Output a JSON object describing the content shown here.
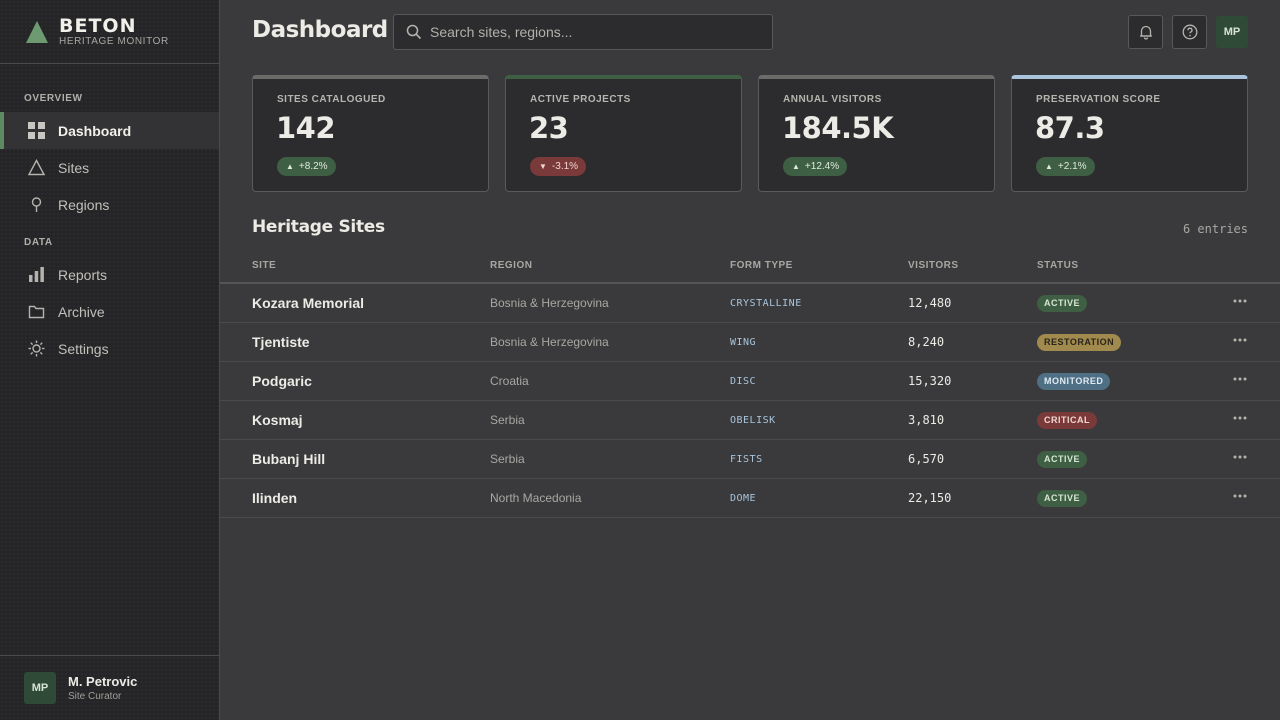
{
  "brand": {
    "name": "BETON",
    "subtitle": "HERITAGE MONITOR",
    "accent": "#5d8a63"
  },
  "nav": {
    "sections": [
      {
        "label": "OVERVIEW"
      },
      {
        "label": "DATA"
      }
    ],
    "items": [
      {
        "label": "Dashboard",
        "icon": "grid-icon",
        "active": true
      },
      {
        "label": "Sites",
        "icon": "triangle-icon"
      },
      {
        "label": "Regions",
        "icon": "pin-icon"
      },
      {
        "label": "Reports",
        "icon": "bar-chart-icon"
      },
      {
        "label": "Archive",
        "icon": "folder-icon"
      },
      {
        "label": "Settings",
        "icon": "gear-icon"
      }
    ]
  },
  "user": {
    "initials": "MP",
    "name": "M. Petrovic",
    "role": "Site Curator"
  },
  "header": {
    "title": "Dashboard",
    "search_placeholder": "Search sites, regions...",
    "avatar_initials": "MP"
  },
  "stats": [
    {
      "label": "SITES CATALOGUED",
      "value": "142",
      "delta": "+8.2%",
      "trend": "up",
      "accent": "#6b6b6a"
    },
    {
      "label": "ACTIVE PROJECTS",
      "value": "23",
      "delta": "-3.1%",
      "trend": "down",
      "accent": "#3f5f45"
    },
    {
      "label": "ANNUAL VISITORS",
      "value": "184.5K",
      "delta": "+12.4%",
      "trend": "up",
      "accent": "#6b6b6a"
    },
    {
      "label": "PRESERVATION SCORE",
      "value": "87.3",
      "delta": "+2.1%",
      "trend": "up",
      "accent": "#a9c4dc"
    }
  ],
  "table": {
    "title": "Heritage Sites",
    "entries": "6 entries",
    "columns": [
      "SITE",
      "REGION",
      "FORM TYPE",
      "VISITORS",
      "STATUS"
    ],
    "rows": [
      {
        "site": "Kozara Memorial",
        "region": "Bosnia & Herzegovina",
        "form": "CRYSTALLINE",
        "visitors": "12,480",
        "status": "ACTIVE"
      },
      {
        "site": "Tjentiste",
        "region": "Bosnia & Herzegovina",
        "form": "WING",
        "visitors": "8,240",
        "status": "RESTORATION"
      },
      {
        "site": "Podgaric",
        "region": "Croatia",
        "form": "DISC",
        "visitors": "15,320",
        "status": "MONITORED"
      },
      {
        "site": "Kosmaj",
        "region": "Serbia",
        "form": "OBELISK",
        "visitors": "3,810",
        "status": "CRITICAL"
      },
      {
        "site": "Bubanj Hill",
        "region": "Serbia",
        "form": "FISTS",
        "visitors": "6,570",
        "status": "ACTIVE"
      },
      {
        "site": "Ilinden",
        "region": "North Macedonia",
        "form": "DOME",
        "visitors": "22,150",
        "status": "ACTIVE"
      }
    ],
    "status_colors": {
      "ACTIVE": {
        "bg": "#3f5f45",
        "fg": "#d6e6d3"
      },
      "RESTORATION": {
        "bg": "#a08a4e",
        "fg": "#2a241a"
      },
      "MONITORED": {
        "bg": "#4e6f84",
        "fg": "#e0ebf3"
      },
      "CRITICAL": {
        "bg": "#7a3a3a",
        "fg": "#f2d8d5"
      }
    }
  }
}
